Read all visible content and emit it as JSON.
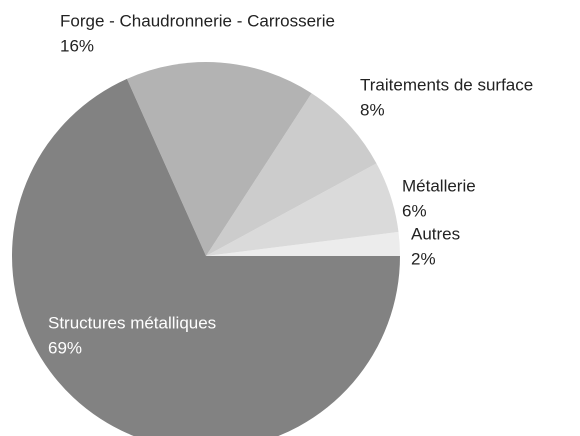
{
  "chart_data": {
    "type": "pie",
    "categories": [
      "Autres",
      "Métallerie",
      "Traitements de surface",
      "Forge - Chaudronnerie - Carrosserie",
      "Structures métalliques"
    ],
    "values": [
      2,
      6,
      8,
      16,
      69
    ],
    "value_labels": [
      "2%",
      "6%",
      "8%",
      "16%",
      "69%"
    ],
    "colors": [
      "#ececec",
      "#dadada",
      "#cccccc",
      "#b3b3b3",
      "#828282"
    ]
  }
}
